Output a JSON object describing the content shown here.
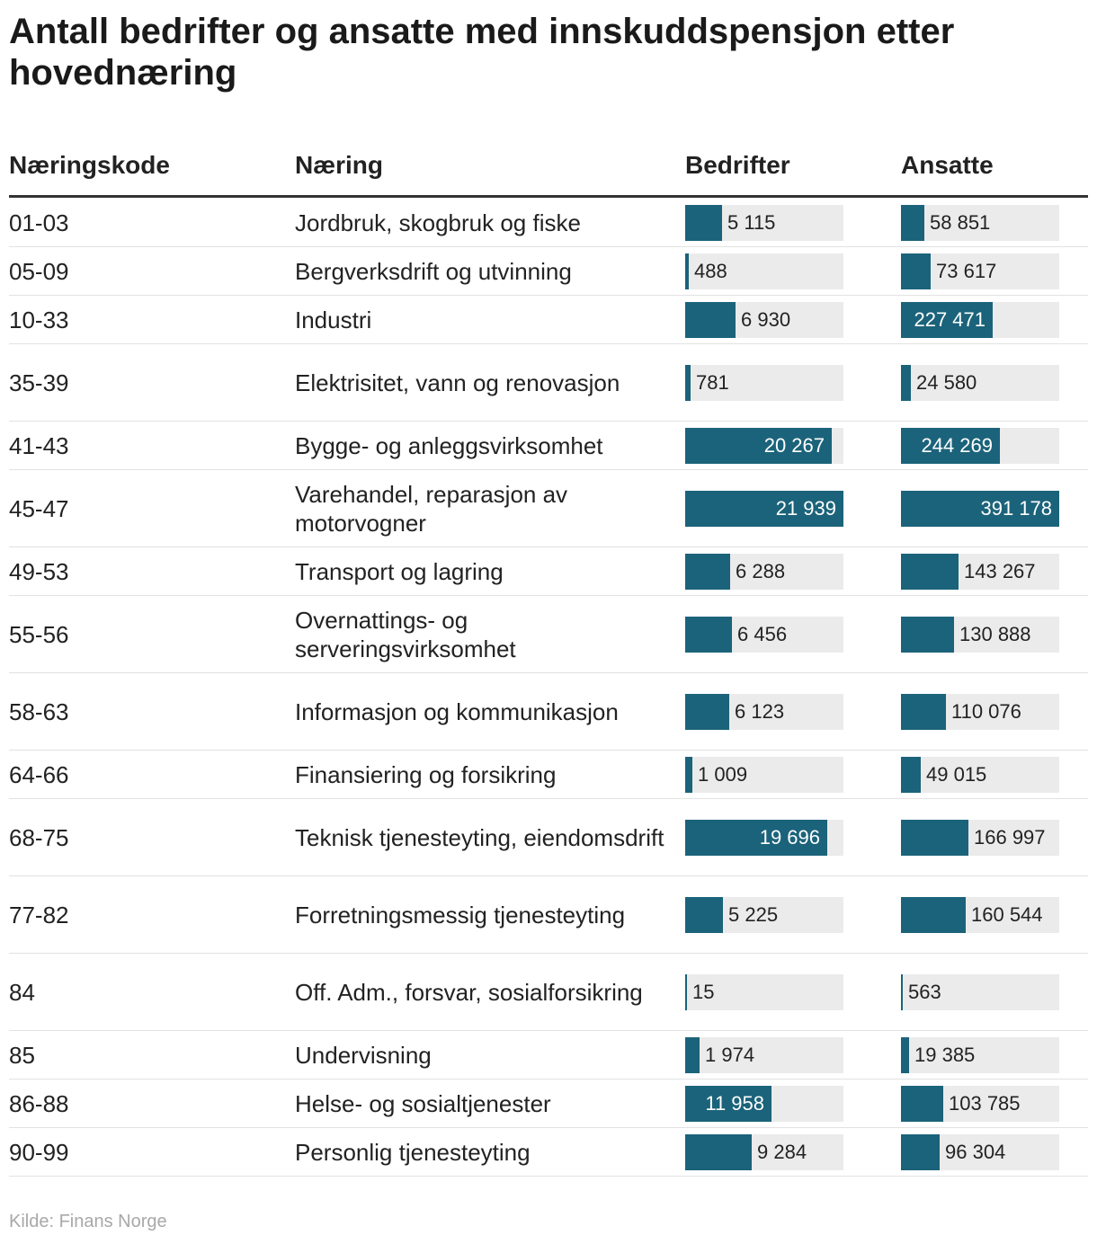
{
  "title": "Antall bedrifter og ansatte med innskuddspensjon etter hovednæring",
  "colors": {
    "bar": "#1b637a",
    "track": "#ebebeb",
    "text_dark": "#222222",
    "text_light": "#ffffff"
  },
  "headers": {
    "code": "Næringskode",
    "name": "Næring",
    "companies": "Bedrifter",
    "employees": "Ansatte"
  },
  "chart_data": {
    "type": "table",
    "title": "Antall bedrifter og ansatte med innskuddspensjon etter hovednæring",
    "columns": [
      "Næringskode",
      "Næring",
      "Bedrifter",
      "Ansatte"
    ],
    "max": {
      "companies": 21939,
      "employees": 391178
    },
    "rows": [
      {
        "code": "01-03",
        "name": "Jordbruk, skogbruk og fiske",
        "companies": 5115,
        "companies_label": "5 115",
        "employees": 58851,
        "employees_label": "58 851"
      },
      {
        "code": "05-09",
        "name": "Bergverksdrift og utvinning",
        "companies": 488,
        "companies_label": "488",
        "employees": 73617,
        "employees_label": "73 617"
      },
      {
        "code": "10-33",
        "name": "Industri",
        "companies": 6930,
        "companies_label": "6 930",
        "employees": 227471,
        "employees_label": "227 471"
      },
      {
        "code": "35-39",
        "name": "Elektrisitet, vann og renovasjon",
        "companies": 781,
        "companies_label": "781",
        "employees": 24580,
        "employees_label": "24 580"
      },
      {
        "code": "41-43",
        "name": "Bygge- og anleggsvirksomhet",
        "companies": 20267,
        "companies_label": "20 267",
        "employees": 244269,
        "employees_label": "244 269"
      },
      {
        "code": "45-47",
        "name": "Varehandel, reparasjon av motorvogner",
        "companies": 21939,
        "companies_label": "21 939",
        "employees": 391178,
        "employees_label": "391 178"
      },
      {
        "code": "49-53",
        "name": "Transport og lagring",
        "companies": 6288,
        "companies_label": "6 288",
        "employees": 143267,
        "employees_label": "143 267"
      },
      {
        "code": "55-56",
        "name": "Overnattings- og serveringsvirksomhet",
        "companies": 6456,
        "companies_label": "6 456",
        "employees": 130888,
        "employees_label": "130 888"
      },
      {
        "code": "58-63",
        "name": "Informasjon og kommunikasjon",
        "companies": 6123,
        "companies_label": "6 123",
        "employees": 110076,
        "employees_label": "110 076"
      },
      {
        "code": "64-66",
        "name": "Finansiering og forsikring",
        "companies": 1009,
        "companies_label": "1 009",
        "employees": 49015,
        "employees_label": "49 015"
      },
      {
        "code": "68-75",
        "name": "Teknisk tjenesteyting, eiendomsdrift",
        "companies": 19696,
        "companies_label": "19 696",
        "employees": 166997,
        "employees_label": "166 997"
      },
      {
        "code": "77-82",
        "name": "Forretningsmessig tjenesteyting",
        "companies": 5225,
        "companies_label": "5 225",
        "employees": 160544,
        "employees_label": "160 544"
      },
      {
        "code": "84",
        "name": "Off. Adm., forsvar, sosialforsikring",
        "companies": 15,
        "companies_label": "15",
        "employees": 563,
        "employees_label": "563"
      },
      {
        "code": "85",
        "name": "Undervisning",
        "companies": 1974,
        "companies_label": "1 974",
        "employees": 19385,
        "employees_label": "19 385"
      },
      {
        "code": "86-88",
        "name": "Helse- og sosialtjenester",
        "companies": 11958,
        "companies_label": "11 958",
        "employees": 103785,
        "employees_label": "103 785"
      },
      {
        "code": "90-99",
        "name": "Personlig tjenesteyting",
        "companies": 9284,
        "companies_label": "9 284",
        "employees": 96304,
        "employees_label": "96 304"
      }
    ]
  },
  "source": "Kilde: Finans Norge"
}
